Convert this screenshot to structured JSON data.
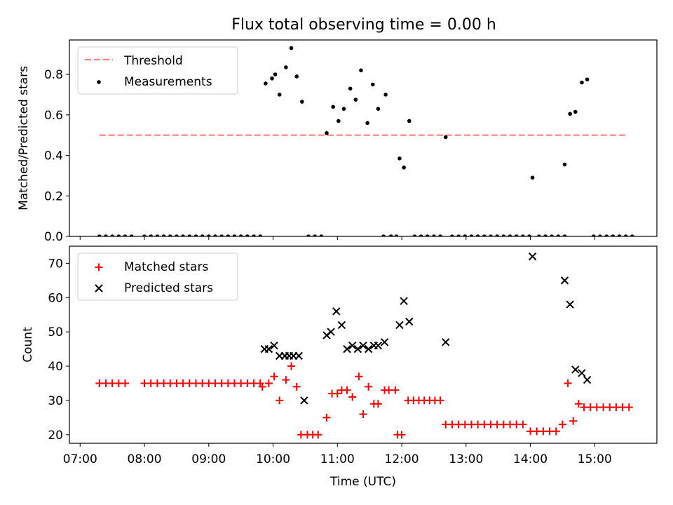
{
  "title": "Flux total observing time = 0.00 h",
  "colors": {
    "threshold": "#ff7f7f",
    "measurements": "#000000",
    "matched": "#ff0000",
    "predicted": "#000000"
  },
  "chart_data": [
    {
      "type": "scatter",
      "ylabel": "Matched/Predicted stars",
      "xlabel": "",
      "ylim": [
        0,
        0.97
      ],
      "yticks": [
        0.0,
        0.2,
        0.4,
        0.6,
        0.8
      ],
      "ytick_labels": [
        "0.0",
        "0.2",
        "0.4",
        "0.6",
        "0.8"
      ],
      "xlim": [
        "06:50",
        "15:58"
      ],
      "legend": {
        "position": "top-left",
        "entries": [
          "Threshold",
          "Measurements"
        ]
      },
      "threshold": {
        "name": "Threshold",
        "value": 0.5,
        "x": [
          "07:18",
          "15:30"
        ]
      },
      "series": [
        {
          "name": "Measurements",
          "marker": "dot",
          "points": [
            [
              "07:18",
              0
            ],
            [
              "07:24",
              0
            ],
            [
              "07:30",
              0
            ],
            [
              "07:36",
              0
            ],
            [
              "07:42",
              0
            ],
            [
              "07:48",
              0
            ],
            [
              "08:00",
              0
            ],
            [
              "08:06",
              0
            ],
            [
              "08:12",
              0
            ],
            [
              "08:18",
              0
            ],
            [
              "08:24",
              0
            ],
            [
              "08:30",
              0
            ],
            [
              "08:36",
              0
            ],
            [
              "08:42",
              0
            ],
            [
              "08:48",
              0
            ],
            [
              "08:54",
              0
            ],
            [
              "09:00",
              0
            ],
            [
              "09:06",
              0
            ],
            [
              "09:12",
              0
            ],
            [
              "09:18",
              0
            ],
            [
              "09:24",
              0
            ],
            [
              "09:30",
              0
            ],
            [
              "09:36",
              0
            ],
            [
              "09:42",
              0
            ],
            [
              "09:48",
              0
            ],
            [
              "09:53",
              0.755
            ],
            [
              "09:59",
              0.78
            ],
            [
              "10:02",
              0.8
            ],
            [
              "10:06",
              0.7
            ],
            [
              "10:12",
              0.835
            ],
            [
              "10:17",
              0.93
            ],
            [
              "10:22",
              0.79
            ],
            [
              "10:27",
              0.665
            ],
            [
              "10:33",
              0
            ],
            [
              "10:39",
              0
            ],
            [
              "10:45",
              0
            ],
            [
              "10:50",
              0.51
            ],
            [
              "10:56",
              0.64
            ],
            [
              "11:01",
              0.57
            ],
            [
              "11:06",
              0.63
            ],
            [
              "11:12",
              0.73
            ],
            [
              "11:17",
              0.675
            ],
            [
              "11:22",
              0.82
            ],
            [
              "11:28",
              0.56
            ],
            [
              "11:33",
              0.75
            ],
            [
              "11:38",
              0.63
            ],
            [
              "11:43",
              0
            ],
            [
              "11:45",
              0.7
            ],
            [
              "11:50",
              0
            ],
            [
              "11:55",
              0
            ],
            [
              "11:58",
              0.385
            ],
            [
              "12:02",
              0.34
            ],
            [
              "12:07",
              0.57
            ],
            [
              "12:12",
              0
            ],
            [
              "12:18",
              0
            ],
            [
              "12:24",
              0
            ],
            [
              "12:30",
              0
            ],
            [
              "12:36",
              0
            ],
            [
              "12:41",
              0.49
            ],
            [
              "12:47",
              0
            ],
            [
              "12:53",
              0
            ],
            [
              "12:59",
              0
            ],
            [
              "13:05",
              0
            ],
            [
              "13:11",
              0
            ],
            [
              "13:17",
              0
            ],
            [
              "13:23",
              0
            ],
            [
              "13:29",
              0
            ],
            [
              "13:35",
              0
            ],
            [
              "13:41",
              0
            ],
            [
              "13:47",
              0
            ],
            [
              "13:53",
              0
            ],
            [
              "13:59",
              0
            ],
            [
              "14:02",
              0.29
            ],
            [
              "14:08",
              0
            ],
            [
              "14:14",
              0
            ],
            [
              "14:20",
              0
            ],
            [
              "14:26",
              0
            ],
            [
              "14:32",
              0
            ],
            [
              "14:32",
              0.355
            ],
            [
              "14:37",
              0.605
            ],
            [
              "14:42",
              0.615
            ],
            [
              "14:48",
              0.76
            ],
            [
              "14:53",
              0.775
            ],
            [
              "14:59",
              0
            ],
            [
              "15:05",
              0
            ],
            [
              "15:11",
              0
            ],
            [
              "15:17",
              0
            ],
            [
              "15:23",
              0
            ],
            [
              "15:29",
              0
            ],
            [
              "15:35",
              0
            ]
          ]
        }
      ]
    },
    {
      "type": "scatter",
      "ylabel": "Count",
      "xlabel": "Time (UTC)",
      "ylim": [
        17.5,
        75
      ],
      "yticks": [
        20,
        30,
        40,
        50,
        60,
        70
      ],
      "ytick_labels": [
        "20",
        "30",
        "40",
        "50",
        "60",
        "70"
      ],
      "xlim": [
        "06:50",
        "15:58"
      ],
      "xticks": [
        "07:00",
        "08:00",
        "09:00",
        "10:00",
        "11:00",
        "12:00",
        "13:00",
        "14:00",
        "15:00"
      ],
      "legend": {
        "position": "top-left",
        "entries": [
          "Matched stars",
          "Predicted stars"
        ]
      },
      "series": [
        {
          "name": "Matched stars",
          "marker": "plus",
          "points": [
            [
              "07:18",
              35
            ],
            [
              "07:24",
              35
            ],
            [
              "07:30",
              35
            ],
            [
              "07:36",
              35
            ],
            [
              "07:42",
              35
            ],
            [
              "08:00",
              35
            ],
            [
              "08:06",
              35
            ],
            [
              "08:12",
              35
            ],
            [
              "08:18",
              35
            ],
            [
              "08:24",
              35
            ],
            [
              "08:30",
              35
            ],
            [
              "08:36",
              35
            ],
            [
              "08:42",
              35
            ],
            [
              "08:48",
              35
            ],
            [
              "08:54",
              35
            ],
            [
              "09:00",
              35
            ],
            [
              "09:06",
              35
            ],
            [
              "09:12",
              35
            ],
            [
              "09:18",
              35
            ],
            [
              "09:24",
              35
            ],
            [
              "09:30",
              35
            ],
            [
              "09:36",
              35
            ],
            [
              "09:42",
              35
            ],
            [
              "09:48",
              35
            ],
            [
              "09:50",
              34
            ],
            [
              "09:56",
              35
            ],
            [
              "10:01",
              37
            ],
            [
              "10:06",
              30
            ],
            [
              "10:12",
              36
            ],
            [
              "10:17",
              40
            ],
            [
              "10:22",
              34
            ],
            [
              "10:26",
              20
            ],
            [
              "10:32",
              20
            ],
            [
              "10:37",
              20
            ],
            [
              "10:42",
              20
            ],
            [
              "10:50",
              25
            ],
            [
              "10:55",
              32
            ],
            [
              "11:00",
              32
            ],
            [
              "11:04",
              33
            ],
            [
              "11:09",
              33
            ],
            [
              "11:14",
              31
            ],
            [
              "11:20",
              37
            ],
            [
              "11:24",
              26
            ],
            [
              "11:29",
              34
            ],
            [
              "11:34",
              29
            ],
            [
              "11:38",
              29
            ],
            [
              "11:44",
              33
            ],
            [
              "11:48",
              33
            ],
            [
              "11:54",
              33
            ],
            [
              "11:56",
              20
            ],
            [
              "12:00",
              20
            ],
            [
              "12:06",
              30
            ],
            [
              "12:11",
              30
            ],
            [
              "12:16",
              30
            ],
            [
              "12:21",
              30
            ],
            [
              "12:26",
              30
            ],
            [
              "12:31",
              30
            ],
            [
              "12:36",
              30
            ],
            [
              "12:41",
              23
            ],
            [
              "12:47",
              23
            ],
            [
              "12:53",
              23
            ],
            [
              "12:59",
              23
            ],
            [
              "13:05",
              23
            ],
            [
              "13:11",
              23
            ],
            [
              "13:17",
              23
            ],
            [
              "13:23",
              23
            ],
            [
              "13:29",
              23
            ],
            [
              "13:35",
              23
            ],
            [
              "13:41",
              23
            ],
            [
              "13:47",
              23
            ],
            [
              "13:53",
              23
            ],
            [
              "14:00",
              21
            ],
            [
              "14:06",
              21
            ],
            [
              "14:12",
              21
            ],
            [
              "14:18",
              21
            ],
            [
              "14:24",
              21
            ],
            [
              "14:30",
              23
            ],
            [
              "14:35",
              35
            ],
            [
              "14:40",
              24
            ],
            [
              "14:45",
              29
            ],
            [
              "14:50",
              28
            ],
            [
              "14:56",
              28
            ],
            [
              "15:02",
              28
            ],
            [
              "15:08",
              28
            ],
            [
              "15:14",
              28
            ],
            [
              "15:20",
              28
            ],
            [
              "15:26",
              28
            ],
            [
              "15:32",
              28
            ]
          ]
        },
        {
          "name": "Predicted stars",
          "marker": "x",
          "points": [
            [
              "09:52",
              45
            ],
            [
              "09:56",
              45
            ],
            [
              "10:01",
              46
            ],
            [
              "10:06",
              43
            ],
            [
              "10:11",
              43
            ],
            [
              "10:15",
              43
            ],
            [
              "10:19",
              43
            ],
            [
              "10:24",
              43
            ],
            [
              "10:29",
              30
            ],
            [
              "10:50",
              49
            ],
            [
              "10:54",
              50
            ],
            [
              "10:59",
              56
            ],
            [
              "11:04",
              52
            ],
            [
              "11:09",
              45
            ],
            [
              "11:14",
              46
            ],
            [
              "11:19",
              45
            ],
            [
              "11:24",
              46
            ],
            [
              "11:29",
              45
            ],
            [
              "11:34",
              46
            ],
            [
              "11:38",
              46
            ],
            [
              "11:44",
              47
            ],
            [
              "11:58",
              52
            ],
            [
              "12:02",
              59
            ],
            [
              "12:07",
              53
            ],
            [
              "12:41",
              47
            ],
            [
              "14:02",
              72
            ],
            [
              "14:32",
              65
            ],
            [
              "14:37",
              58
            ],
            [
              "14:42",
              39
            ],
            [
              "14:48",
              38
            ],
            [
              "14:53",
              36
            ]
          ]
        }
      ]
    }
  ]
}
